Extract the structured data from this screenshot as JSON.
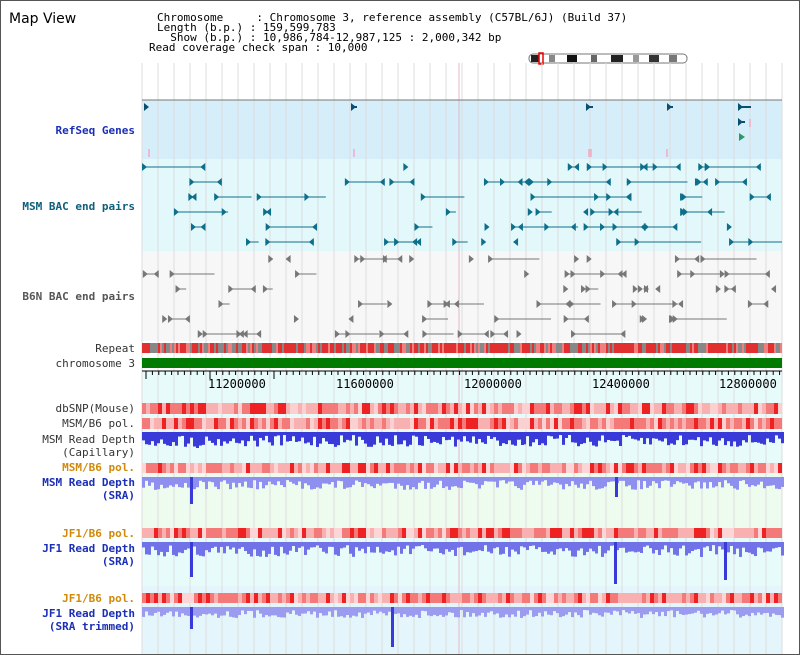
{
  "page": {
    "title": "Map View"
  },
  "info": {
    "chromosome_line": "Chromosome     : Chromosome 3, reference assembly (C57BL/6J) (Build 37)",
    "length_line": "Length (b.p.) : 159,599,783",
    "show_line": "  Show (b.p.) : 10,986,784-12,987,125 : 2,000,342 bp",
    "coverage_line": "Read coverage check span : 10,000"
  },
  "tracks": {
    "refseq": "RefSeq Genes",
    "msm_bac": "MSM BAC end pairs",
    "b6n_bac": "B6N BAC end pairs",
    "repeat": "Repeat",
    "chromosome": "chromosome 3",
    "dbsnp": "dbSNP(Mouse)",
    "msm_b6_pol": "MSM/B6 pol.",
    "msm_read_depth_line1": "MSM Read Depth",
    "msm_read_depth_line2": "(Capillary)",
    "msm_b6_pol_2": "MSM/B6 pol.",
    "msm_sra_line1": "MSM Read Depth",
    "msm_sra_line2": "(SRA)",
    "jf1_b6_pol": "JF1/B6 pol.",
    "jf1_sra_line1": "JF1 Read Depth",
    "jf1_sra_line2": "(SRA)",
    "jf1_b6_pol_2": "JF1/B6 pol.",
    "jf1_trim_line1": "JF1 Read Depth",
    "jf1_trim_line2": "(SRA trimmed)"
  },
  "axis": {
    "ticks": [
      "11200000",
      "11600000",
      "12000000",
      "12400000",
      "12800000"
    ]
  },
  "colors": {
    "refseq_bg": "#d6eefa",
    "bac_bg": "#e2f8fb",
    "b6n_bg": "#f7f7f7",
    "chromosome_bar": "#007a00",
    "depth_bar": "#3a3ad8",
    "depth_bar_light": "#8f8ff0",
    "label_blue": "#1a2fb5",
    "label_orange": "#d08a0a"
  }
}
